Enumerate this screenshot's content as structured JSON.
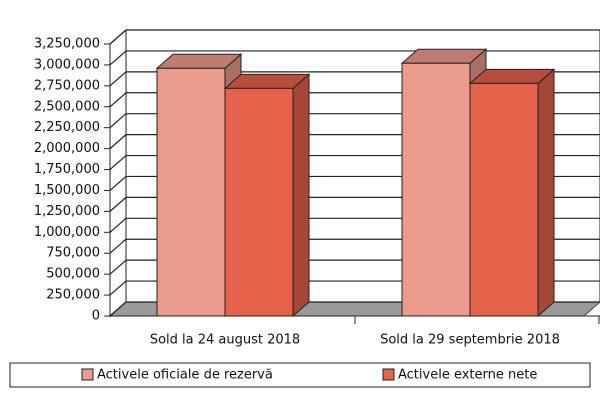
{
  "chart_data": {
    "type": "bar3d",
    "categories": [
      "Sold la 24 august 2018",
      "Sold la 29 septembrie 2018"
    ],
    "series": [
      {
        "name": "Activele oficiale de rezervă",
        "color": "#eb9b8c",
        "values": [
          2960000,
          3020000
        ]
      },
      {
        "name": "Activele externe nete",
        "color": "#e5624b",
        "values": [
          2720000,
          2780000
        ]
      }
    ],
    "ylim": [
      0,
      3250000
    ],
    "yticks": [
      0,
      {
        "value": 250000,
        "label": "250,000"
      },
      {
        "value": 500000,
        "label": "500,000"
      },
      {
        "value": 750000,
        "label": "750,000"
      },
      {
        "value": 1000000,
        "label": "1,000,000"
      },
      {
        "value": 1250000,
        "label": "1,250,000"
      },
      {
        "value": 1500000,
        "label": "1,500,000"
      },
      {
        "value": 1750000,
        "label": "1,750,000"
      },
      {
        "value": 2000000,
        "label": "2,000,000"
      },
      {
        "value": 2250000,
        "label": "2,250,000"
      },
      {
        "value": 2500000,
        "label": "2,500,000"
      },
      {
        "value": 2750000,
        "label": "2,750,000"
      },
      {
        "value": 3000000,
        "label": "3,000,000"
      },
      {
        "value": 3250000,
        "label": "3,250,000"
      }
    ],
    "grid": true,
    "legend": "bottom"
  }
}
